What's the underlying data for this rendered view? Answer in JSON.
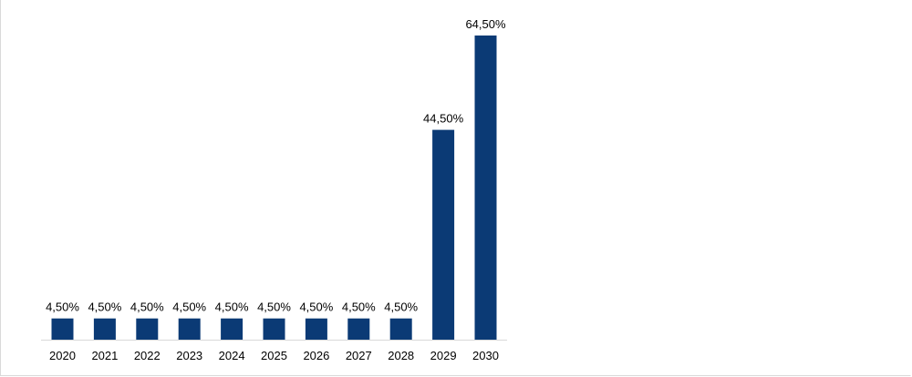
{
  "chart_data": {
    "type": "bar",
    "categories": [
      "2020",
      "2021",
      "2022",
      "2023",
      "2024",
      "2025",
      "2026",
      "2027",
      "2028",
      "2029",
      "2030"
    ],
    "values": [
      4.5,
      4.5,
      4.5,
      4.5,
      4.5,
      4.5,
      4.5,
      4.5,
      4.5,
      44.5,
      64.5
    ],
    "data_labels": [
      "4,50%",
      "4,50%",
      "4,50%",
      "4,50%",
      "4,50%",
      "4,50%",
      "4,50%",
      "4,50%",
      "4,50%",
      "44,50%",
      "64,50%"
    ],
    "title": "",
    "xlabel": "",
    "ylabel": "",
    "ylim": [
      0,
      70
    ],
    "grid": false,
    "legend": "none",
    "bar_color": "#0b3a75",
    "axis_color": "#d9d9d9"
  }
}
